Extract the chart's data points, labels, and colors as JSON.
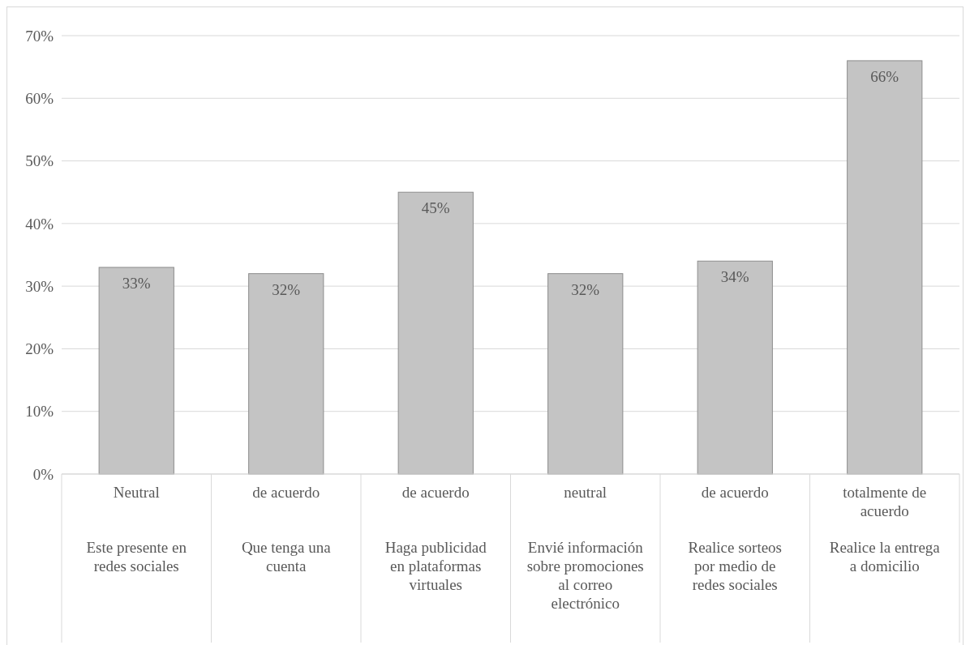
{
  "chart_data": {
    "type": "bar",
    "categories": [
      "Este presente en redes sociales",
      "Que tenga una cuenta",
      "Haga publicidad en plataformas virtuales",
      "Envié información sobre promociones al correo electrónico",
      "Realice sorteos por medio de redes sociales",
      "Realice la entrega a domicilio"
    ],
    "values": [
      33,
      32,
      45,
      32,
      34,
      66
    ],
    "color": "#c4c4c4",
    "data_labels": true,
    "ylim": [
      0,
      70
    ],
    "yticks": [
      {
        "value": 0,
        "label": "0%"
      },
      {
        "value": 10,
        "label": "10%"
      },
      {
        "value": 20,
        "label": "20%"
      },
      {
        "value": 30,
        "label": "30%"
      },
      {
        "value": 40,
        "label": "40%"
      },
      {
        "value": 50,
        "label": "50%"
      },
      {
        "value": 60,
        "label": "60%"
      },
      {
        "value": 70,
        "label": "70%"
      }
    ],
    "value_labels": [
      "33%",
      "32%",
      "45%",
      "32%",
      "34%",
      "66%"
    ],
    "grid": "y",
    "annotations": [
      "Neutral",
      "de acuerdo",
      "de acuerdo",
      "neutral",
      "de acuerdo",
      "totalmente de acuerdo"
    ]
  }
}
